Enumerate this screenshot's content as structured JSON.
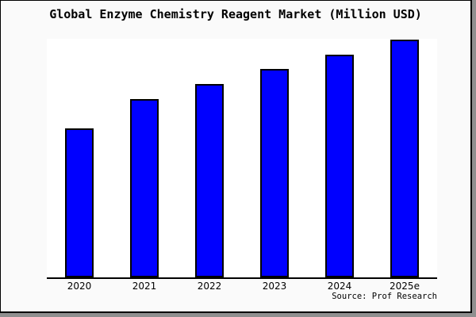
{
  "header": {
    "title": "Global Enzyme Chemistry Reagent Market (Million USD)"
  },
  "footer": {
    "source": "Source: Prof Research"
  },
  "colors": {
    "page_background": "#fafafa",
    "plot_background": "#ffffff",
    "bar_fill": "#0000ff",
    "bar_border": "#000000",
    "axis": "#000000",
    "frame_shadow": "#8f8f8f"
  },
  "chart_data": {
    "type": "bar",
    "title": "Global Enzyme Chemistry Reagent Market (Million USD)",
    "categories": [
      "2020",
      "2021",
      "2022",
      "2023",
      "2024",
      "2025e"
    ],
    "values": [
      188,
      225,
      244,
      263,
      281,
      300
    ],
    "values_note": "no y-axis shown; values are relative bar heights read from pixels",
    "xlabel": "",
    "ylabel": "",
    "ylim": [
      0,
      301
    ],
    "grid": false,
    "legend": false,
    "y_axis_visible": false,
    "bar_color": "#0000ff",
    "source": "Source: Prof Research"
  }
}
